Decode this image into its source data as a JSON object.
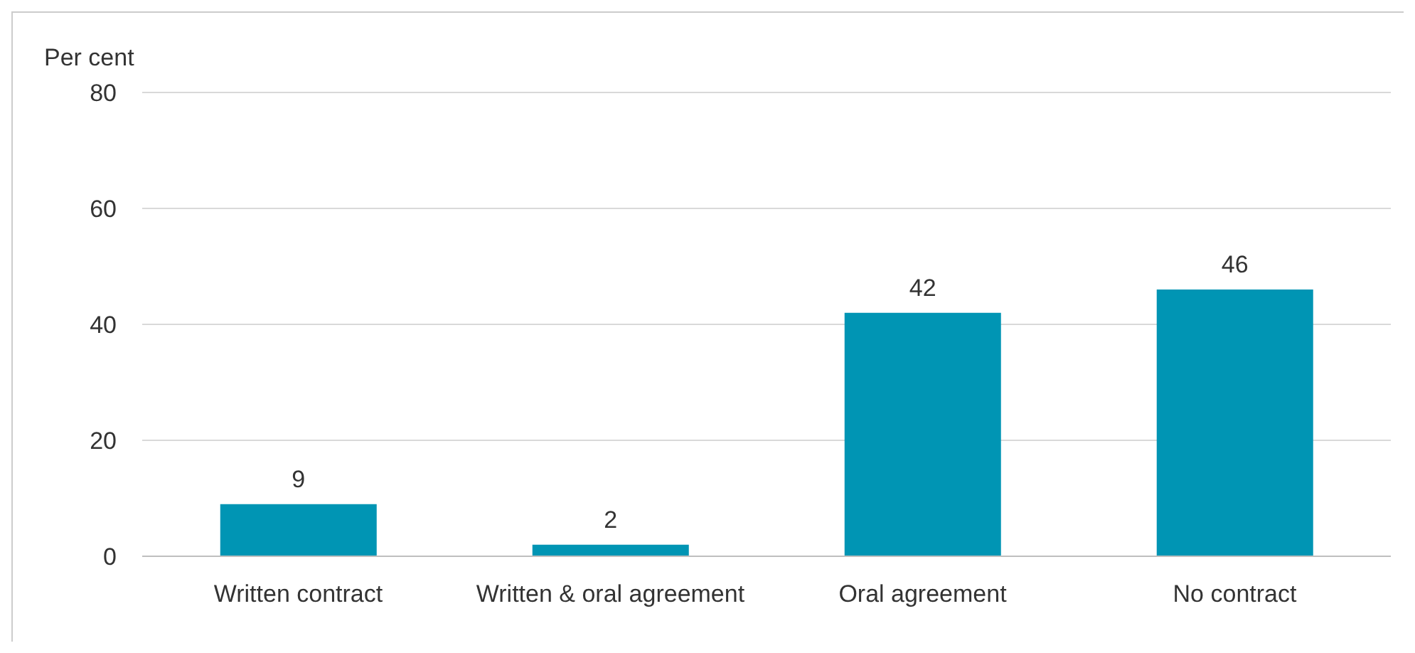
{
  "chart_data": {
    "type": "bar",
    "ylabel": "Per cent",
    "categories": [
      "Written contract",
      "Written & oral agreement",
      "Oral agreement",
      "No contract"
    ],
    "values": [
      9,
      2,
      42,
      46
    ],
    "color": "#0095b4",
    "ylim": [
      0,
      80
    ],
    "yticks": [
      0,
      20,
      40,
      60,
      80
    ],
    "grid": "y",
    "data_labels": true
  }
}
